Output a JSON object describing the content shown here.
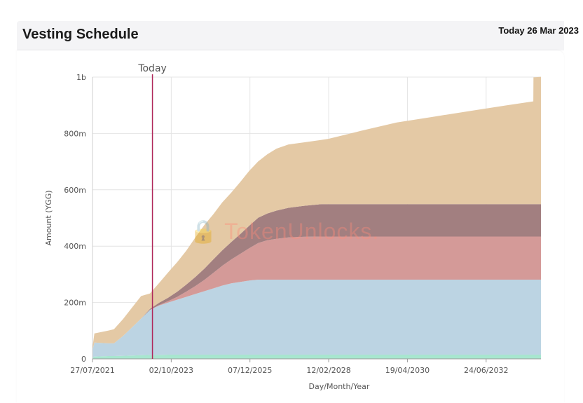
{
  "header": {
    "title": "Vesting Schedule",
    "today_text": "Today 26 Mar 2023"
  },
  "watermark": {
    "text": "TokenUnlocks.",
    "logo_icon": "lock-icon"
  },
  "chart_data": {
    "type": "area",
    "stacked": true,
    "xlabel": "Day/Month/Year",
    "ylabel": "Amount (YGG)",
    "ylim": [
      0,
      1000000000
    ],
    "yticks": [
      {
        "value": 0,
        "label": "0"
      },
      {
        "value": 200000000,
        "label": "200m"
      },
      {
        "value": 400000000,
        "label": "400m"
      },
      {
        "value": 600000000,
        "label": "600m"
      },
      {
        "value": 800000000,
        "label": "800m"
      },
      {
        "value": 1000000000,
        "label": "1b"
      }
    ],
    "xrange": [
      "2021-07-27",
      "2033-12-31"
    ],
    "xticks": [
      {
        "date": "2021-07-27",
        "label": "27/07/2021"
      },
      {
        "date": "2023-10-02",
        "label": "02/10/2023"
      },
      {
        "date": "2025-12-07",
        "label": "07/12/2025"
      },
      {
        "date": "2028-02-12",
        "label": "12/02/2028"
      },
      {
        "date": "2030-04-19",
        "label": "19/04/2030"
      },
      {
        "date": "2032-06-24",
        "label": "24/06/2032"
      }
    ],
    "today_marker": {
      "date": "2023-03-26",
      "label": "Today",
      "color": "#b0275a"
    },
    "grid": true,
    "x": [
      "2021-07-27",
      "2021-08-15",
      "2022-01-01",
      "2022-03-01",
      "2022-06-01",
      "2022-09-01",
      "2022-12-01",
      "2023-03-01",
      "2023-06-01",
      "2023-09-01",
      "2023-12-01",
      "2024-03-01",
      "2024-06-01",
      "2024-09-01",
      "2024-12-01",
      "2025-03-01",
      "2025-06-01",
      "2025-09-01",
      "2025-12-01",
      "2026-03-01",
      "2026-06-01",
      "2026-09-01",
      "2027-01-01",
      "2027-06-01",
      "2027-12-01",
      "2028-02-12",
      "2029-01-01",
      "2030-01-01",
      "2031-01-01",
      "2032-01-01",
      "2033-01-01",
      "2033-10-15",
      "2033-10-16",
      "2033-12-31"
    ],
    "series": [
      {
        "color": "#a8e6cf",
        "values": [
          5000000,
          8000000,
          10000000,
          10000000,
          11000000,
          12000000,
          13000000,
          14000000,
          14000000,
          15000000,
          15000000,
          15000000,
          15000000,
          15000000,
          15000000,
          15000000,
          15000000,
          15000000,
          15000000,
          15000000,
          15000000,
          15000000,
          15000000,
          15000000,
          15000000,
          15000000,
          15000000,
          15000000,
          15000000,
          15000000,
          15000000,
          15000000,
          15000000,
          15000000
        ]
      },
      {
        "color": "#bcd4e3",
        "values": [
          25000000,
          50000000,
          45000000,
          45000000,
          70000000,
          100000000,
          130000000,
          160000000,
          175000000,
          185000000,
          195000000,
          205000000,
          215000000,
          225000000,
          235000000,
          245000000,
          253000000,
          258000000,
          263000000,
          266000000,
          266000000,
          266000000,
          266000000,
          266000000,
          266000000,
          266000000,
          266000000,
          266000000,
          266000000,
          266000000,
          266000000,
          266000000,
          266000000,
          266000000
        ]
      },
      {
        "color": "#d49a98",
        "values": [
          0,
          0,
          0,
          0,
          0,
          0,
          0,
          0,
          2000000,
          5000000,
          10000000,
          18000000,
          28000000,
          40000000,
          55000000,
          70000000,
          85000000,
          100000000,
          115000000,
          130000000,
          140000000,
          145000000,
          150000000,
          152000000,
          153000000,
          153000000,
          153000000,
          153000000,
          153000000,
          153000000,
          153000000,
          153000000,
          153000000,
          153000000
        ]
      },
      {
        "color": "#a27f80",
        "values": [
          0,
          0,
          0,
          0,
          0,
          0,
          0,
          3000000,
          8000000,
          12000000,
          18000000,
          25000000,
          32000000,
          40000000,
          48000000,
          55000000,
          62000000,
          70000000,
          80000000,
          90000000,
          95000000,
          100000000,
          105000000,
          110000000,
          115000000,
          115000000,
          115000000,
          115000000,
          115000000,
          115000000,
          115000000,
          115000000,
          115000000,
          115000000
        ]
      },
      {
        "color": "#e4c9a5",
        "values": [
          10000000,
          32000000,
          45000000,
          50000000,
          60000000,
          70000000,
          80000000,
          55000000,
          70000000,
          90000000,
          105000000,
          120000000,
          140000000,
          155000000,
          160000000,
          170000000,
          175000000,
          185000000,
          195000000,
          200000000,
          210000000,
          220000000,
          225000000,
          225000000,
          228000000,
          232000000,
          260000000,
          290000000,
          310000000,
          330000000,
          350000000,
          365000000,
          450000000,
          452000000
        ]
      }
    ]
  }
}
